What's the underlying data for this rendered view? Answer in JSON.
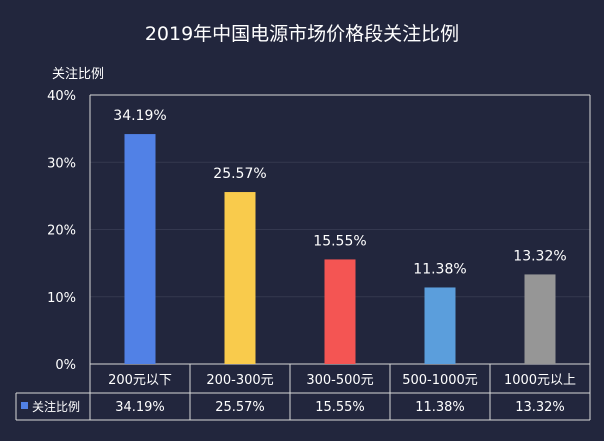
{
  "chart_data": {
    "type": "bar",
    "title": "2019年中国电源市场价格段关注比例",
    "ylabel": "关注比例",
    "xlabel": "",
    "ylim": [
      0,
      40
    ],
    "yticks": [
      0,
      10,
      20,
      30,
      40
    ],
    "yticks_format": "%",
    "grid": true,
    "legend": "bottom-left in data table",
    "categories": [
      "200元以下",
      "200-300元",
      "300-500元",
      "500-1000元",
      "1000元以上"
    ],
    "series": [
      {
        "name": "关注比例",
        "values": [
          34.19,
          25.57,
          15.55,
          11.38,
          13.32
        ],
        "colors": [
          "#5181e6",
          "#f9cb4c",
          "#f45553",
          "#5b9edc",
          "#969696"
        ]
      }
    ],
    "data_labels": [
      "34.19%",
      "25.57%",
      "15.55%",
      "11.38%",
      "13.32%"
    ],
    "data_table": {
      "row_label": "关注比例",
      "legend_marker_color": "#5181e6",
      "values": [
        "34.19%",
        "25.57%",
        "15.55%",
        "11.38%",
        "13.32%"
      ]
    },
    "colors": {
      "background": "#22263d",
      "text": "#ffffff",
      "grid": "#34384f",
      "axis": "#d8d8d8"
    }
  }
}
